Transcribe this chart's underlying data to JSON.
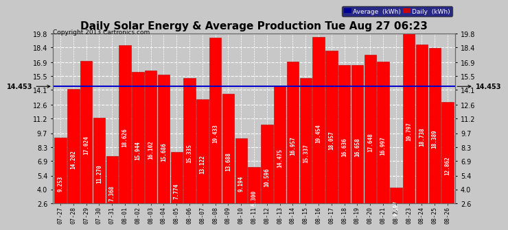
{
  "title": "Daily Solar Energy & Average Production Tue Aug 27 06:23",
  "copyright": "Copyright 2013 Cartronics.com",
  "average_value": 14.453,
  "average_label": "14.453",
  "categories": [
    "07-27",
    "07-28",
    "07-29",
    "07-30",
    "07-31",
    "08-01",
    "08-02",
    "08-03",
    "08-04",
    "08-05",
    "08-06",
    "08-07",
    "08-08",
    "08-09",
    "08-10",
    "08-11",
    "08-12",
    "08-13",
    "08-14",
    "08-15",
    "08-16",
    "08-17",
    "08-18",
    "08-19",
    "08-20",
    "08-21",
    "08-22",
    "08-23",
    "08-24",
    "08-25",
    "08-26"
  ],
  "values": [
    9.253,
    14.202,
    17.024,
    11.27,
    7.368,
    18.626,
    15.944,
    16.102,
    15.686,
    7.774,
    15.335,
    13.122,
    19.433,
    13.688,
    9.194,
    6.3,
    10.596,
    14.475,
    16.957,
    15.337,
    19.454,
    18.057,
    16.636,
    16.658,
    17.648,
    16.997,
    4.197,
    19.797,
    18.738,
    18.389,
    12.862
  ],
  "bar_color": "#ff0000",
  "bar_edge_color": "#bb0000",
  "average_line_color": "#0000cc",
  "background_color": "#c8c8c8",
  "plot_bg_color": "#c8c8c8",
  "grid_color": "#ffffff",
  "ylim": [
    2.6,
    19.8
  ],
  "yticks": [
    2.6,
    4.0,
    5.4,
    6.9,
    8.3,
    9.7,
    11.2,
    12.6,
    14.1,
    15.5,
    16.9,
    18.4,
    19.8
  ],
  "legend_avg_color": "#000099",
  "legend_daily_color": "#cc0000",
  "title_fontsize": 11,
  "bar_value_fontsize": 5.5,
  "tick_fontsize": 7,
  "xtick_fontsize": 6
}
